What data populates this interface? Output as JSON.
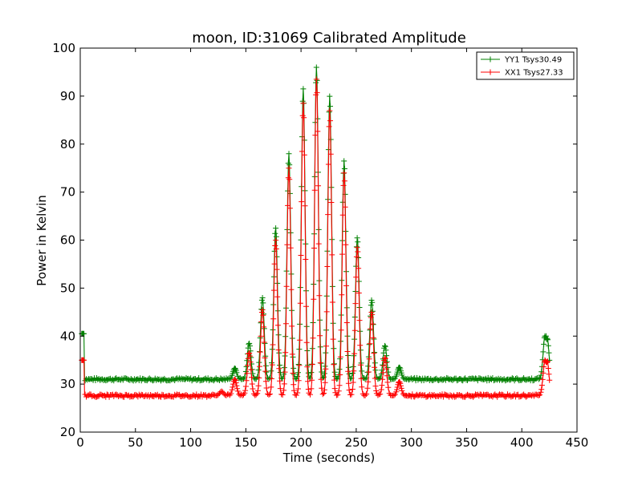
{
  "chart_data": {
    "type": "line",
    "title": "moon, ID:31069 Calibrated Amplitude",
    "xlabel": "Time (seconds)",
    "ylabel": "Power in Kelvin",
    "xlim": [
      0,
      450
    ],
    "ylim": [
      20,
      100
    ],
    "xticks": [
      0,
      50,
      100,
      150,
      200,
      250,
      300,
      350,
      400,
      450
    ],
    "yticks": [
      20,
      30,
      40,
      50,
      60,
      70,
      80,
      90,
      100
    ],
    "grid": false,
    "legend_position": "top-right",
    "marker": "+",
    "series": [
      {
        "name": "YY1 Tsys30.49",
        "color": "#008000",
        "baseline": 31.0,
        "x": [
          2,
          4,
          140,
          153,
          165,
          177,
          189,
          202,
          214,
          226,
          239,
          251,
          264,
          276,
          289,
          421,
          423
        ],
        "y": [
          40.5,
          40.3,
          33.3,
          38.5,
          48.0,
          62.5,
          78.0,
          91.5,
          96.0,
          90.0,
          76.5,
          60.5,
          47.5,
          38.0,
          33.5,
          40.0,
          39.5
        ]
      },
      {
        "name": "XX1 Tsys27.33",
        "color": "#ff0000",
        "baseline": 27.6,
        "x": [
          2,
          4,
          128,
          140,
          153,
          165,
          177,
          189,
          202,
          214,
          226,
          239,
          251,
          264,
          276,
          289,
          421,
          423
        ],
        "y": [
          35.0,
          34.8,
          28.5,
          31.0,
          36.5,
          45.5,
          60.0,
          75.0,
          88.5,
          93.5,
          87.0,
          74.0,
          58.5,
          45.0,
          35.5,
          30.5,
          35.0,
          34.5
        ]
      }
    ]
  }
}
